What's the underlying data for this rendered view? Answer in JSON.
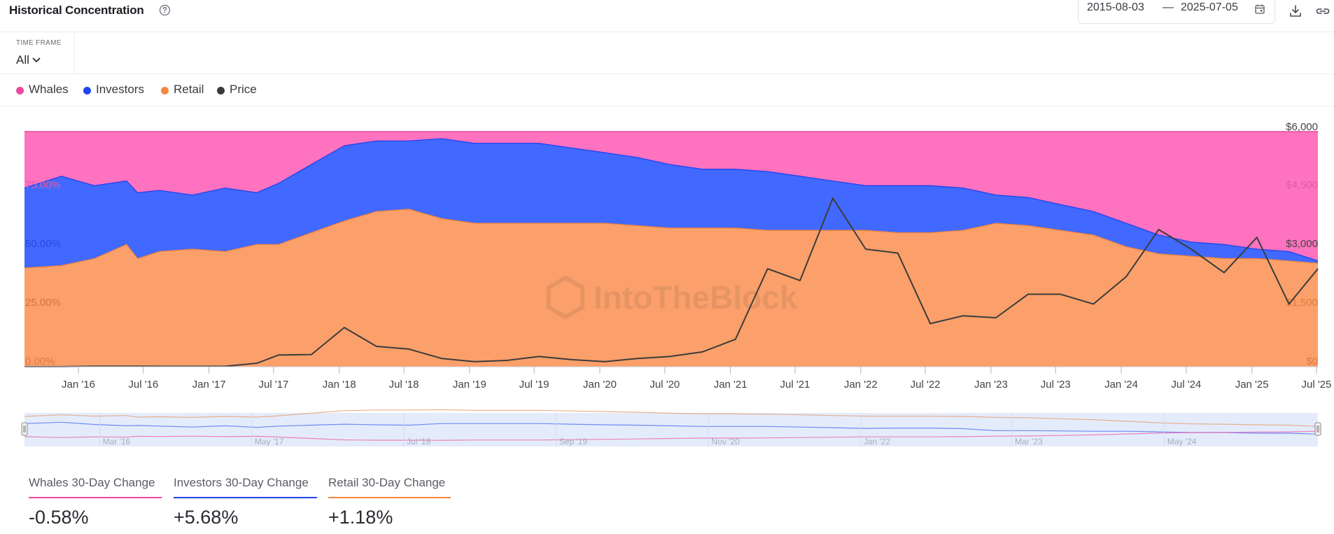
{
  "header": {
    "title": "Historical Concentration",
    "date_start": "2015-08-03",
    "date_sep": "—",
    "date_end": "2025-07-05"
  },
  "timeframe": {
    "label": "TIME FRAME",
    "value": "All"
  },
  "legend": [
    {
      "name": "Whales",
      "color": "#ec4aa0"
    },
    {
      "name": "Investors",
      "color": "#1f44f0"
    },
    {
      "name": "Retail",
      "color": "#f5873f"
    },
    {
      "name": "Price",
      "color": "#3a3a3a"
    }
  ],
  "colors": {
    "whales_area": "#ff72bf",
    "investors_area": "#4169ff",
    "retail_area": "#fba06a",
    "price_line": "#3c3c3c",
    "navigator_bg": "#e4ecfb"
  },
  "watermark": "IntoTheBlock",
  "chart_data": {
    "type": "area",
    "stacking": "percent",
    "x_range": [
      "2015-08-03",
      "2025-07-05"
    ],
    "x_ticks": [
      "Jan '16",
      "Jul '16",
      "Jan '17",
      "Jul '17",
      "Jan '18",
      "Jul '18",
      "Jan '19",
      "Jul '19",
      "Jan '20",
      "Jul '20",
      "Jan '21",
      "Jul '21",
      "Jan '22",
      "Jul '22",
      "Jan '23",
      "Jul '23",
      "Jan '24",
      "Jul '24",
      "Jan '25",
      "Jul '25"
    ],
    "y_left": {
      "min": 0,
      "max": 100,
      "ticks": [
        "0.00%",
        "25.00%",
        "50.00%",
        "75.00%"
      ]
    },
    "y_right": {
      "min": 0,
      "max": 6000,
      "ticks": [
        "$0",
        "$1,500",
        "$3,000",
        "$4,500",
        "$6,000"
      ]
    },
    "navigator_ticks": [
      "Mar '16",
      "May '17",
      "Jul '18",
      "Sep '19",
      "Nov '20",
      "Jan '22",
      "Mar '23",
      "May '24"
    ],
    "dates": [
      "2015-08",
      "2015-11",
      "2016-02",
      "2016-05",
      "2016-06",
      "2016-08",
      "2016-11",
      "2017-02",
      "2017-05",
      "2017-07",
      "2017-10",
      "2018-01",
      "2018-04",
      "2018-07",
      "2018-10",
      "2019-01",
      "2019-04",
      "2019-07",
      "2019-10",
      "2020-01",
      "2020-04",
      "2020-07",
      "2020-10",
      "2021-01",
      "2021-04",
      "2021-07",
      "2021-10",
      "2022-01",
      "2022-04",
      "2022-07",
      "2022-10",
      "2023-01",
      "2023-04",
      "2023-07",
      "2023-10",
      "2024-01",
      "2024-04",
      "2024-07",
      "2024-10",
      "2025-01",
      "2025-04",
      "2025-07"
    ],
    "series": [
      {
        "name": "Retail",
        "values": [
          42,
          43,
          46,
          52,
          46,
          49,
          50,
          49,
          52,
          52,
          57,
          62,
          66,
          67,
          63,
          61,
          61,
          61,
          61,
          61,
          60,
          59,
          59,
          59,
          58,
          58,
          58,
          58,
          57,
          57,
          58,
          61,
          60,
          58,
          56,
          51,
          48,
          47,
          46,
          46,
          45,
          44
        ]
      },
      {
        "name": "Investors",
        "values": [
          34,
          38,
          31,
          27,
          28,
          26,
          23,
          27,
          22,
          26,
          29,
          32,
          30,
          29,
          34,
          34,
          34,
          34,
          32,
          30,
          29,
          27,
          25,
          25,
          25,
          23,
          21,
          19,
          20,
          20,
          18,
          12,
          12,
          11,
          10,
          10,
          8,
          6,
          6,
          4,
          4,
          1
        ]
      },
      {
        "name": "Whales",
        "values": [
          24,
          19,
          23,
          21,
          26,
          25,
          27,
          24,
          26,
          22,
          14,
          6,
          4,
          4,
          3,
          5,
          5,
          5,
          7,
          9,
          11,
          14,
          16,
          16,
          17,
          19,
          21,
          23,
          23,
          23,
          24,
          27,
          28,
          31,
          34,
          39,
          44,
          47,
          48,
          50,
          51,
          55
        ]
      },
      {
        "name": "Price",
        "values": [
          1,
          1,
          12,
          14,
          14,
          10,
          10,
          11,
          90,
          300,
          310,
          1000,
          520,
          450,
          210,
          130,
          160,
          260,
          180,
          130,
          210,
          260,
          380,
          700,
          2500,
          2200,
          4300,
          3000,
          2900,
          1100,
          1300,
          1250,
          1850,
          1850,
          1600,
          2300,
          3500,
          3000,
          2400,
          3300,
          1600,
          2500
        ]
      }
    ]
  },
  "metrics": [
    {
      "label": "Whales 30-Day Change",
      "value": "-0.58%",
      "color": "#ec4aa0"
    },
    {
      "label": "Investors 30-Day Change",
      "value": "+5.68%",
      "color": "#1f44f0"
    },
    {
      "label": "Retail 30-Day Change",
      "value": "+1.18%",
      "color": "#f5873f"
    }
  ]
}
